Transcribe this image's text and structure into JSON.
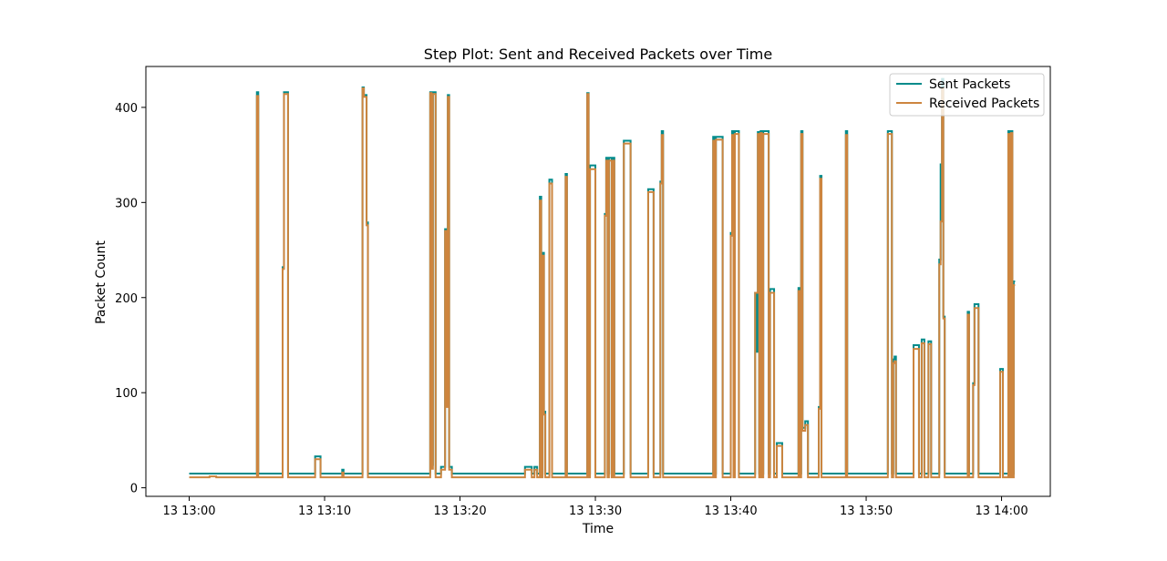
{
  "chart_data": {
    "type": "line",
    "step": "post",
    "title": "Step Plot: Sent and Received Packets over Time",
    "xlabel": "Time",
    "ylabel": "Packet Count",
    "x_unit": "minutes after 13 13:00",
    "xlim": [
      -3.2,
      63.6
    ],
    "ylim": [
      -9,
      443
    ],
    "xticks": [
      0,
      10,
      20,
      30,
      40,
      50,
      60
    ],
    "xtick_labels": [
      "13 13:00",
      "13 13:10",
      "13 13:20",
      "13 13:30",
      "13 13:40",
      "13 13:50",
      "13 14:00"
    ],
    "yticks": [
      0,
      100,
      200,
      300,
      400
    ],
    "ytick_labels": [
      "0",
      "100",
      "200",
      "300",
      "400"
    ],
    "grid": false,
    "legend": {
      "position": "top-right",
      "entries": [
        "Sent Packets",
        "Received Packets"
      ]
    },
    "series": [
      {
        "name": "Sent Packets",
        "color": "#008b8b",
        "points": [
          [
            0.0,
            15
          ],
          [
            5.0,
            416
          ],
          [
            5.1,
            15
          ],
          [
            6.9,
            232
          ],
          [
            7.0,
            416
          ],
          [
            7.3,
            15
          ],
          [
            9.3,
            33
          ],
          [
            9.7,
            15
          ],
          [
            11.3,
            19
          ],
          [
            11.4,
            15
          ],
          [
            12.8,
            421
          ],
          [
            12.9,
            413
          ],
          [
            13.1,
            279
          ],
          [
            13.2,
            15
          ],
          [
            17.8,
            416
          ],
          [
            17.9,
            24
          ],
          [
            18.0,
            416
          ],
          [
            18.2,
            15
          ],
          [
            18.6,
            22
          ],
          [
            18.9,
            272
          ],
          [
            19.0,
            87
          ],
          [
            19.1,
            413
          ],
          [
            19.2,
            22
          ],
          [
            19.4,
            15
          ],
          [
            24.8,
            22
          ],
          [
            25.3,
            15
          ],
          [
            25.5,
            22
          ],
          [
            25.7,
            15
          ],
          [
            25.9,
            306
          ],
          [
            26.0,
            15
          ],
          [
            26.1,
            247
          ],
          [
            26.2,
            80
          ],
          [
            26.3,
            15
          ],
          [
            26.6,
            324
          ],
          [
            26.8,
            15
          ],
          [
            27.8,
            330
          ],
          [
            27.9,
            15
          ],
          [
            29.4,
            415
          ],
          [
            29.5,
            15
          ],
          [
            29.6,
            339
          ],
          [
            30.0,
            15
          ],
          [
            30.7,
            288
          ],
          [
            30.8,
            347
          ],
          [
            30.9,
            15
          ],
          [
            31.0,
            347
          ],
          [
            31.2,
            15
          ],
          [
            31.3,
            347
          ],
          [
            31.4,
            15
          ],
          [
            32.1,
            365
          ],
          [
            32.6,
            15
          ],
          [
            33.9,
            314
          ],
          [
            34.3,
            15
          ],
          [
            34.8,
            322
          ],
          [
            34.9,
            375
          ],
          [
            35.0,
            15
          ],
          [
            38.7,
            369
          ],
          [
            38.8,
            15
          ],
          [
            38.9,
            369
          ],
          [
            39.4,
            15
          ],
          [
            40.0,
            268
          ],
          [
            40.1,
            375
          ],
          [
            40.2,
            15
          ],
          [
            40.3,
            375
          ],
          [
            40.6,
            15
          ],
          [
            41.8,
            205
          ],
          [
            41.9,
            143
          ],
          [
            42.0,
            374
          ],
          [
            42.1,
            15
          ],
          [
            42.2,
            375
          ],
          [
            42.3,
            15
          ],
          [
            42.4,
            375
          ],
          [
            42.8,
            15
          ],
          [
            42.9,
            209
          ],
          [
            43.2,
            15
          ],
          [
            43.4,
            47
          ],
          [
            43.8,
            15
          ],
          [
            45.0,
            210
          ],
          [
            45.1,
            15
          ],
          [
            45.2,
            375
          ],
          [
            45.3,
            63
          ],
          [
            45.5,
            70
          ],
          [
            45.7,
            15
          ],
          [
            46.5,
            85
          ],
          [
            46.6,
            328
          ],
          [
            46.7,
            15
          ],
          [
            48.5,
            375
          ],
          [
            48.6,
            15
          ],
          [
            51.6,
            375
          ],
          [
            51.9,
            15
          ],
          [
            52.0,
            135
          ],
          [
            52.1,
            138
          ],
          [
            52.2,
            15
          ],
          [
            53.5,
            150
          ],
          [
            53.9,
            15
          ],
          [
            54.1,
            156
          ],
          [
            54.3,
            15
          ],
          [
            54.6,
            154
          ],
          [
            54.8,
            15
          ],
          [
            55.4,
            240
          ],
          [
            55.5,
            340
          ],
          [
            55.6,
            430
          ],
          [
            55.7,
            180
          ],
          [
            55.8,
            15
          ],
          [
            57.5,
            185
          ],
          [
            57.6,
            15
          ],
          [
            57.9,
            110
          ],
          [
            58.0,
            193
          ],
          [
            58.3,
            15
          ],
          [
            59.9,
            125
          ],
          [
            60.1,
            15
          ],
          [
            60.5,
            375
          ],
          [
            60.6,
            15
          ],
          [
            60.7,
            375
          ],
          [
            60.8,
            15
          ],
          [
            60.9,
            217
          ],
          [
            61.0,
            217
          ]
        ]
      },
      {
        "name": "Received Packets",
        "color": "#cd853f",
        "points": [
          [
            0.0,
            11
          ],
          [
            1.5,
            12
          ],
          [
            2.0,
            11
          ],
          [
            5.0,
            412
          ],
          [
            5.1,
            11
          ],
          [
            6.9,
            230
          ],
          [
            7.0,
            414
          ],
          [
            7.3,
            11
          ],
          [
            9.3,
            30
          ],
          [
            9.7,
            11
          ],
          [
            11.3,
            16
          ],
          [
            11.4,
            11
          ],
          [
            12.8,
            420
          ],
          [
            12.9,
            411
          ],
          [
            13.1,
            276
          ],
          [
            13.2,
            11
          ],
          [
            17.8,
            415
          ],
          [
            17.9,
            20
          ],
          [
            18.0,
            414
          ],
          [
            18.2,
            11
          ],
          [
            18.6,
            19
          ],
          [
            18.9,
            270
          ],
          [
            19.0,
            85
          ],
          [
            19.1,
            411
          ],
          [
            19.2,
            19
          ],
          [
            19.4,
            11
          ],
          [
            24.8,
            19
          ],
          [
            25.3,
            11
          ],
          [
            25.5,
            19
          ],
          [
            25.7,
            11
          ],
          [
            25.9,
            302
          ],
          [
            26.0,
            11
          ],
          [
            26.1,
            244
          ],
          [
            26.2,
            77
          ],
          [
            26.3,
            11
          ],
          [
            26.6,
            320
          ],
          [
            26.8,
            11
          ],
          [
            27.8,
            327
          ],
          [
            27.9,
            11
          ],
          [
            29.4,
            414
          ],
          [
            29.5,
            11
          ],
          [
            29.6,
            335
          ],
          [
            30.0,
            11
          ],
          [
            30.7,
            286
          ],
          [
            30.8,
            344
          ],
          [
            30.9,
            11
          ],
          [
            31.0,
            344
          ],
          [
            31.2,
            11
          ],
          [
            31.3,
            344
          ],
          [
            31.4,
            11
          ],
          [
            32.1,
            362
          ],
          [
            32.6,
            11
          ],
          [
            33.9,
            311
          ],
          [
            34.3,
            11
          ],
          [
            34.8,
            320
          ],
          [
            34.9,
            371
          ],
          [
            35.0,
            11
          ],
          [
            38.7,
            365
          ],
          [
            38.8,
            11
          ],
          [
            38.9,
            366
          ],
          [
            39.4,
            11
          ],
          [
            40.0,
            265
          ],
          [
            40.1,
            371
          ],
          [
            40.2,
            11
          ],
          [
            40.3,
            372
          ],
          [
            40.6,
            11
          ],
          [
            41.8,
            205
          ],
          [
            41.9,
            205
          ],
          [
            42.0,
            372
          ],
          [
            42.1,
            11
          ],
          [
            42.2,
            373
          ],
          [
            42.3,
            11
          ],
          [
            42.4,
            372
          ],
          [
            42.8,
            11
          ],
          [
            42.9,
            205
          ],
          [
            43.2,
            11
          ],
          [
            43.4,
            44
          ],
          [
            43.8,
            11
          ],
          [
            45.0,
            207
          ],
          [
            45.1,
            11
          ],
          [
            45.2,
            372
          ],
          [
            45.3,
            60
          ],
          [
            45.5,
            66
          ],
          [
            45.7,
            11
          ],
          [
            46.5,
            83
          ],
          [
            46.6,
            325
          ],
          [
            46.7,
            11
          ],
          [
            48.5,
            371
          ],
          [
            48.6,
            11
          ],
          [
            51.6,
            372
          ],
          [
            51.9,
            11
          ],
          [
            52.0,
            131
          ],
          [
            52.1,
            133
          ],
          [
            52.2,
            11
          ],
          [
            53.5,
            146
          ],
          [
            53.9,
            11
          ],
          [
            54.1,
            152
          ],
          [
            54.3,
            11
          ],
          [
            54.6,
            151
          ],
          [
            54.8,
            11
          ],
          [
            55.4,
            235
          ],
          [
            55.5,
            280
          ],
          [
            55.6,
            420
          ],
          [
            55.7,
            178
          ],
          [
            55.8,
            11
          ],
          [
            57.5,
            182
          ],
          [
            57.6,
            11
          ],
          [
            57.9,
            108
          ],
          [
            58.0,
            189
          ],
          [
            58.3,
            11
          ],
          [
            59.9,
            122
          ],
          [
            60.1,
            11
          ],
          [
            60.5,
            372
          ],
          [
            60.6,
            11
          ],
          [
            60.7,
            373
          ],
          [
            60.8,
            11
          ],
          [
            60.9,
            213
          ],
          [
            61.0,
            213
          ]
        ]
      }
    ]
  }
}
